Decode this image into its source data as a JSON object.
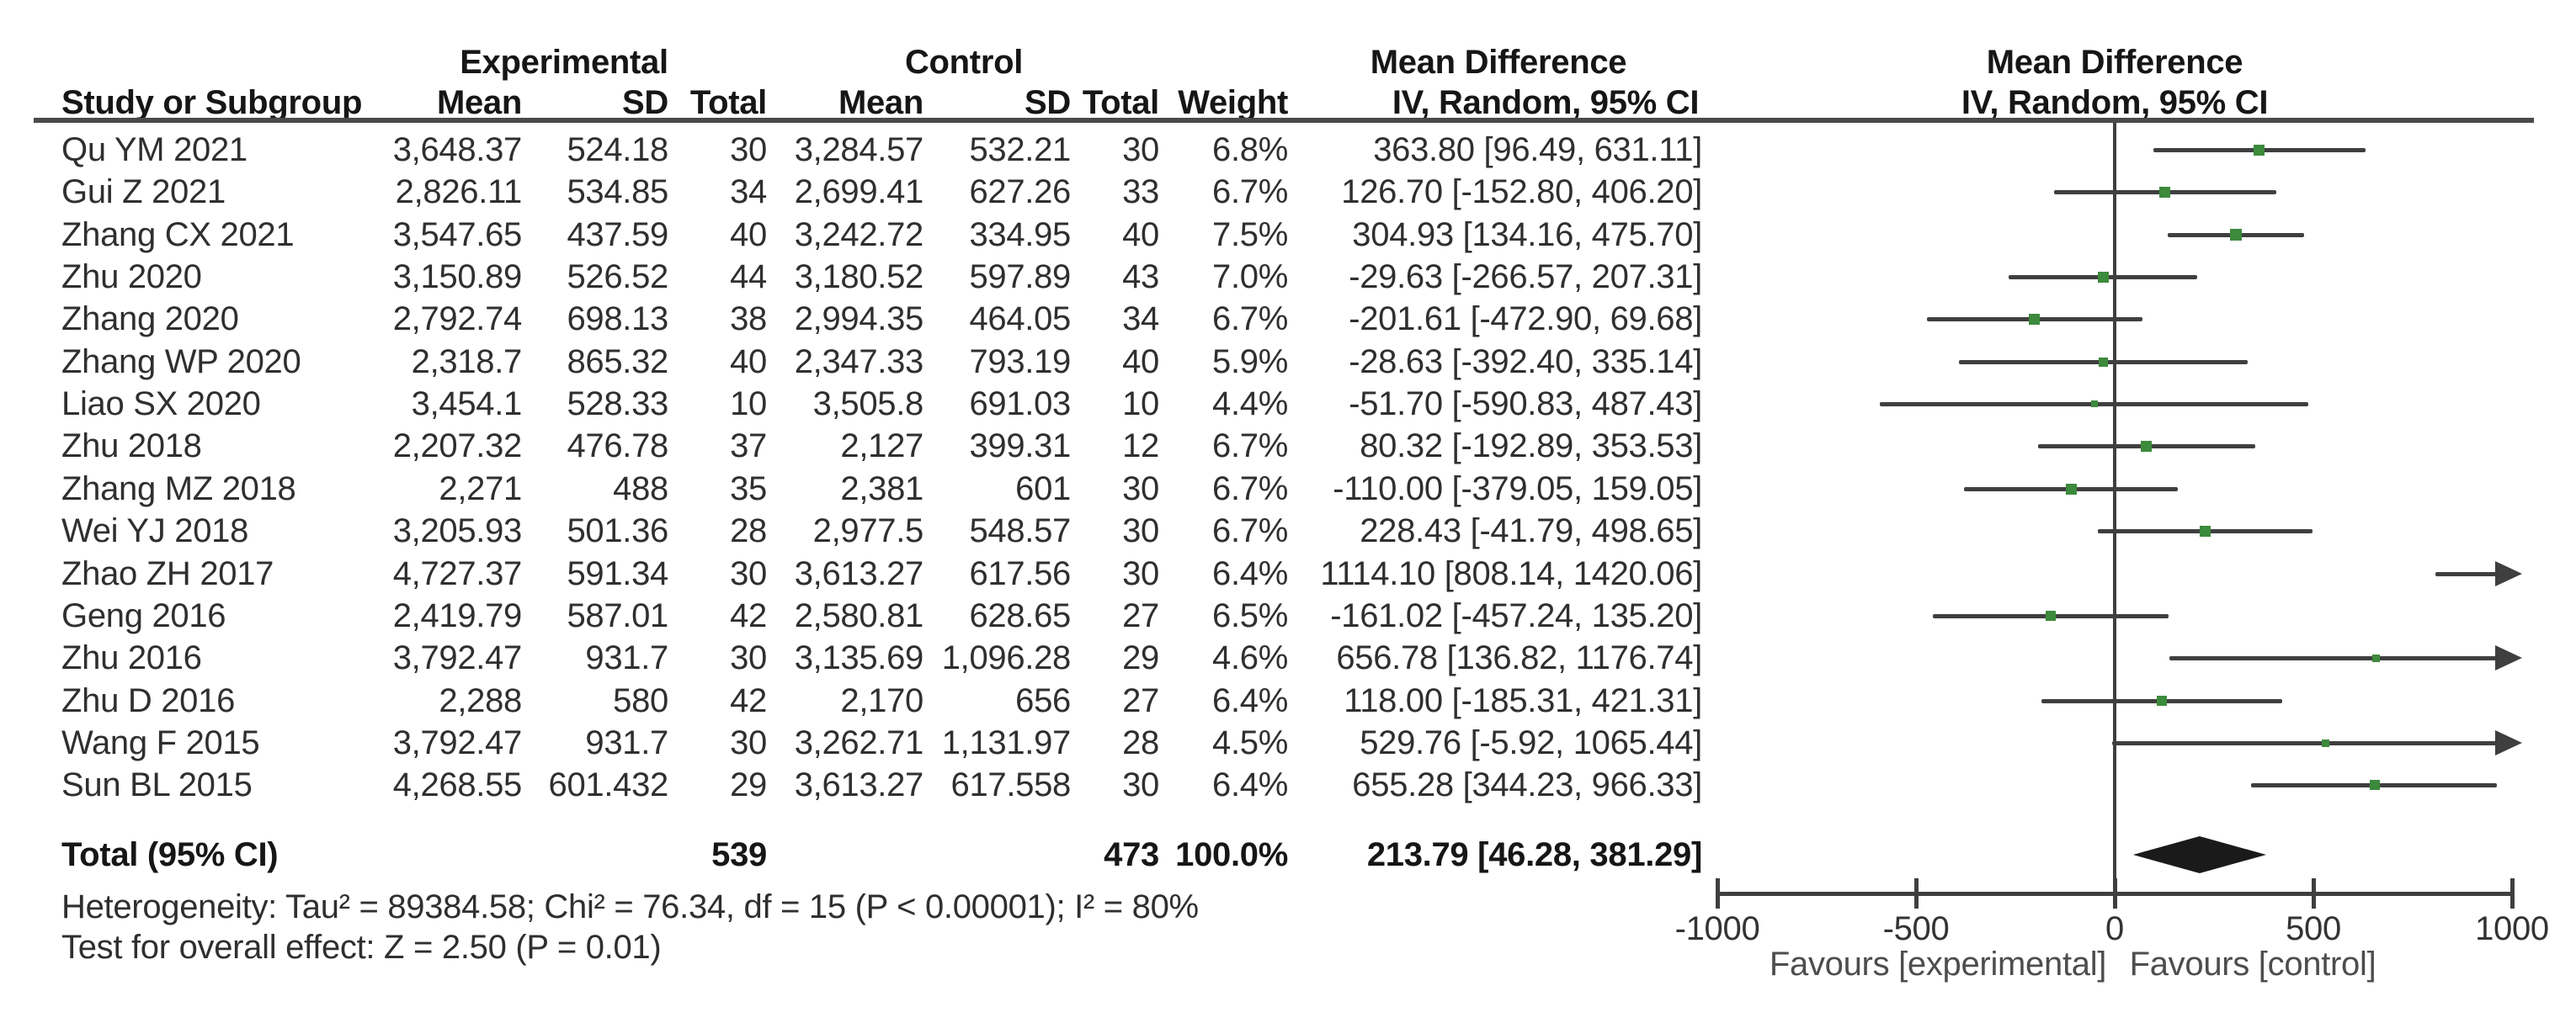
{
  "header": {
    "study": "Study or Subgroup",
    "experimental": "Experimental",
    "control": "Control",
    "mean": "Mean",
    "sd": "SD",
    "total": "Total",
    "weight": "Weight",
    "md": "Mean Difference",
    "method": "IV, Random, 95% CI"
  },
  "footer": {
    "heterogeneity": "Heterogeneity: Tau² = 89384.58; Chi² = 76.34, df = 15 (P < 0.00001); I² = 80%",
    "overall_effect": "Test for overall effect: Z = 2.50 (P = 0.01)"
  },
  "axis_labels": {
    "favours_left": "Favours [experimental]",
    "favours_right": "Favours [control]"
  },
  "colors": {
    "marker_green": "#3c8a3c",
    "diamond_black": "#1a1a1a",
    "line_gray": "#3f3f3f"
  },
  "chart_data": {
    "type": "forest",
    "effect_measure": "Mean Difference",
    "method": "IV, Random, 95% CI",
    "xlim": [
      -1000,
      1000
    ],
    "x_ticks": [
      -1000,
      -500,
      0,
      500,
      1000
    ],
    "x_tick_labels": [
      "-1000",
      "-500",
      "0",
      "500",
      "1000"
    ],
    "studies": [
      {
        "name": "Qu YM 2021",
        "exp_mean": "3,648.37",
        "exp_sd": "524.18",
        "exp_total": "30",
        "ctl_mean": "3,284.57",
        "ctl_sd": "532.21",
        "ctl_total": "30",
        "weight": "6.8%",
        "weight_val": 6.8,
        "ci_text": "363.80 [96.49, 631.11]",
        "md": 363.8,
        "ci": [
          96.49,
          631.11
        ]
      },
      {
        "name": "Gui Z 2021",
        "exp_mean": "2,826.11",
        "exp_sd": "534.85",
        "exp_total": "34",
        "ctl_mean": "2,699.41",
        "ctl_sd": "627.26",
        "ctl_total": "33",
        "weight": "6.7%",
        "weight_val": 6.7,
        "ci_text": "126.70 [-152.80, 406.20]",
        "md": 126.7,
        "ci": [
          -152.8,
          406.2
        ]
      },
      {
        "name": "Zhang CX 2021",
        "exp_mean": "3,547.65",
        "exp_sd": "437.59",
        "exp_total": "40",
        "ctl_mean": "3,242.72",
        "ctl_sd": "334.95",
        "ctl_total": "40",
        "weight": "7.5%",
        "weight_val": 7.5,
        "ci_text": "304.93 [134.16, 475.70]",
        "md": 304.93,
        "ci": [
          134.16,
          475.7
        ]
      },
      {
        "name": "Zhu 2020",
        "exp_mean": "3,150.89",
        "exp_sd": "526.52",
        "exp_total": "44",
        "ctl_mean": "3,180.52",
        "ctl_sd": "597.89",
        "ctl_total": "43",
        "weight": "7.0%",
        "weight_val": 7.0,
        "ci_text": "-29.63 [-266.57, 207.31]",
        "md": -29.63,
        "ci": [
          -266.57,
          207.31
        ]
      },
      {
        "name": "Zhang 2020",
        "exp_mean": "2,792.74",
        "exp_sd": "698.13",
        "exp_total": "38",
        "ctl_mean": "2,994.35",
        "ctl_sd": "464.05",
        "ctl_total": "34",
        "weight": "6.7%",
        "weight_val": 6.7,
        "ci_text": "-201.61 [-472.90, 69.68]",
        "md": -201.61,
        "ci": [
          -472.9,
          69.68
        ]
      },
      {
        "name": "Zhang WP 2020",
        "exp_mean": "2,318.7",
        "exp_sd": "865.32",
        "exp_total": "40",
        "ctl_mean": "2,347.33",
        "ctl_sd": "793.19",
        "ctl_total": "40",
        "weight": "5.9%",
        "weight_val": 5.9,
        "ci_text": "-28.63 [-392.40, 335.14]",
        "md": -28.63,
        "ci": [
          -392.4,
          335.14
        ]
      },
      {
        "name": "Liao SX 2020",
        "exp_mean": "3,454.1",
        "exp_sd": "528.33",
        "exp_total": "10",
        "ctl_mean": "3,505.8",
        "ctl_sd": "691.03",
        "ctl_total": "10",
        "weight": "4.4%",
        "weight_val": 4.4,
        "ci_text": "-51.70 [-590.83, 487.43]",
        "md": -51.7,
        "ci": [
          -590.83,
          487.43
        ]
      },
      {
        "name": "Zhu 2018",
        "exp_mean": "2,207.32",
        "exp_sd": "476.78",
        "exp_total": "37",
        "ctl_mean": "2,127",
        "ctl_sd": "399.31",
        "ctl_total": "12",
        "weight": "6.7%",
        "weight_val": 6.7,
        "ci_text": "80.32 [-192.89, 353.53]",
        "md": 80.32,
        "ci": [
          -192.89,
          353.53
        ]
      },
      {
        "name": "Zhang MZ 2018",
        "exp_mean": "2,271",
        "exp_sd": "488",
        "exp_total": "35",
        "ctl_mean": "2,381",
        "ctl_sd": "601",
        "ctl_total": "30",
        "weight": "6.7%",
        "weight_val": 6.7,
        "ci_text": "-110.00 [-379.05, 159.05]",
        "md": -110.0,
        "ci": [
          -379.05,
          159.05
        ]
      },
      {
        "name": "Wei YJ 2018",
        "exp_mean": "3,205.93",
        "exp_sd": "501.36",
        "exp_total": "28",
        "ctl_mean": "2,977.5",
        "ctl_sd": "548.57",
        "ctl_total": "30",
        "weight": "6.7%",
        "weight_val": 6.7,
        "ci_text": "228.43 [-41.79, 498.65]",
        "md": 228.43,
        "ci": [
          -41.79,
          498.65
        ]
      },
      {
        "name": "Zhao ZH 2017",
        "exp_mean": "4,727.37",
        "exp_sd": "591.34",
        "exp_total": "30",
        "ctl_mean": "3,613.27",
        "ctl_sd": "617.56",
        "ctl_total": "30",
        "weight": "6.4%",
        "weight_val": 6.4,
        "ci_text": "1114.10 [808.14, 1420.06]",
        "md": 1114.1,
        "ci": [
          808.14,
          1420.06
        ]
      },
      {
        "name": "Geng 2016",
        "exp_mean": "2,419.79",
        "exp_sd": "587.01",
        "exp_total": "42",
        "ctl_mean": "2,580.81",
        "ctl_sd": "628.65",
        "ctl_total": "27",
        "weight": "6.5%",
        "weight_val": 6.5,
        "ci_text": "-161.02 [-457.24, 135.20]",
        "md": -161.02,
        "ci": [
          -457.24,
          135.2
        ]
      },
      {
        "name": "Zhu 2016",
        "exp_mean": "3,792.47",
        "exp_sd": "931.7",
        "exp_total": "30",
        "ctl_mean": "3,135.69",
        "ctl_sd": "1,096.28",
        "ctl_total": "29",
        "weight": "4.6%",
        "weight_val": 4.6,
        "ci_text": "656.78 [136.82, 1176.74]",
        "md": 656.78,
        "ci": [
          136.82,
          1176.74
        ]
      },
      {
        "name": "Zhu D 2016",
        "exp_mean": "2,288",
        "exp_sd": "580",
        "exp_total": "42",
        "ctl_mean": "2,170",
        "ctl_sd": "656",
        "ctl_total": "27",
        "weight": "6.4%",
        "weight_val": 6.4,
        "ci_text": "118.00 [-185.31, 421.31]",
        "md": 118.0,
        "ci": [
          -185.31,
          421.31
        ]
      },
      {
        "name": "Wang F 2015",
        "exp_mean": "3,792.47",
        "exp_sd": "931.7",
        "exp_total": "30",
        "ctl_mean": "3,262.71",
        "ctl_sd": "1,131.97",
        "ctl_total": "28",
        "weight": "4.5%",
        "weight_val": 4.5,
        "ci_text": "529.76 [-5.92, 1065.44]",
        "md": 529.76,
        "ci": [
          -5.92,
          1065.44
        ]
      },
      {
        "name": "Sun BL 2015",
        "exp_mean": "4,268.55",
        "exp_sd": "601.432",
        "exp_total": "29",
        "ctl_mean": "3,613.27",
        "ctl_sd": "617.558",
        "ctl_total": "30",
        "weight": "6.4%",
        "weight_val": 6.4,
        "ci_text": "655.28 [344.23, 966.33]",
        "md": 655.28,
        "ci": [
          344.23,
          966.33
        ]
      }
    ],
    "total": {
      "label": "Total (95% CI)",
      "exp_total": "539",
      "ctl_total": "473",
      "weight": "100.0%",
      "ci_text": "213.79 [46.28, 381.29]",
      "md": 213.79,
      "ci": [
        46.28,
        381.29
      ]
    }
  }
}
